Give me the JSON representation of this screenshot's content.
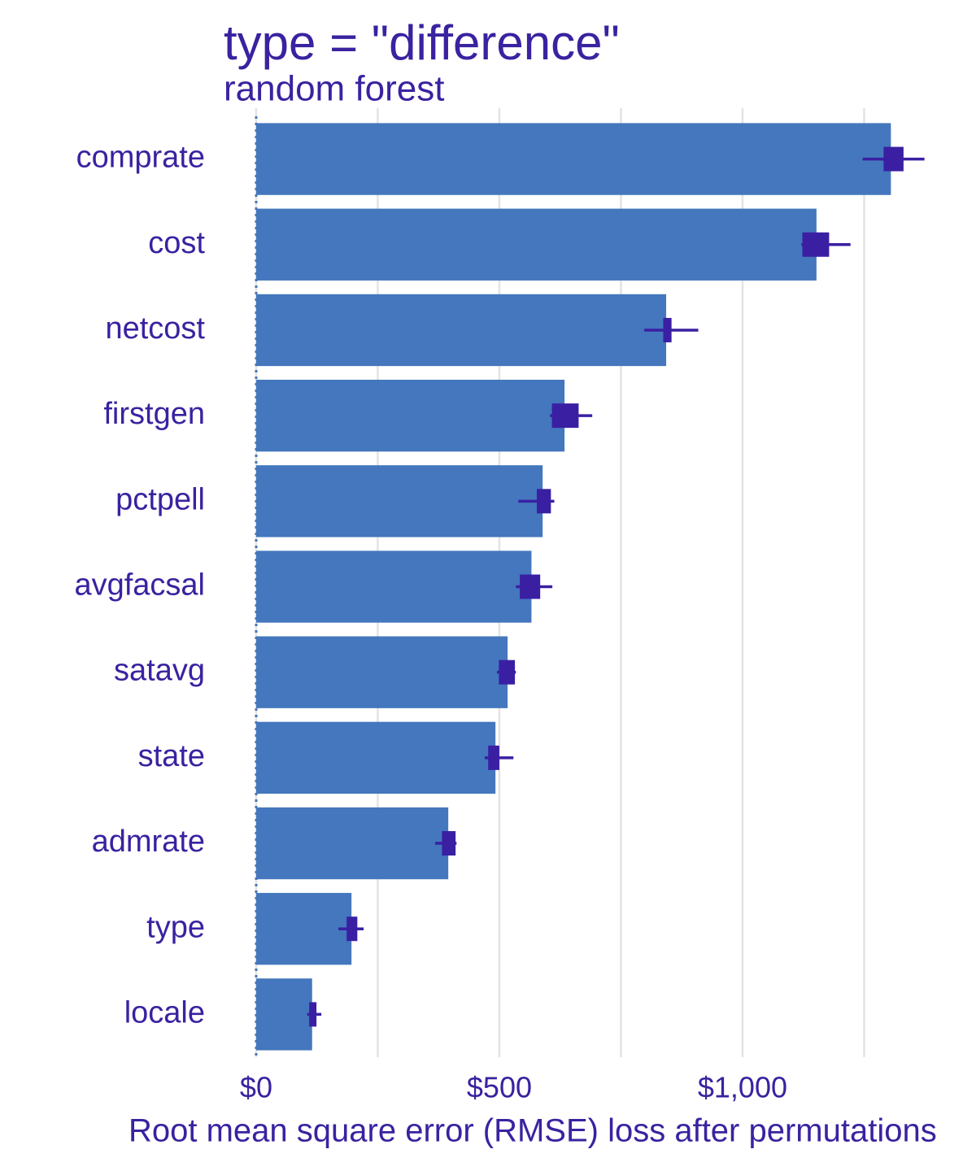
{
  "chart_data": {
    "type": "bar",
    "orientation": "horizontal",
    "title": "type = \"difference\"",
    "subtitle": "random forest",
    "x_label": "Root mean square error (RMSE) loss after permutations",
    "categories": [
      "comprate",
      "cost",
      "netcost",
      "firstgen",
      "pctpell",
      "avgfacsal",
      "satavg",
      "state",
      "admrate",
      "type",
      "locale"
    ],
    "values": [
      1305,
      1152,
      843,
      634,
      589,
      566,
      517,
      492,
      395,
      196,
      115
    ],
    "whisker_low": [
      1247,
      1121,
      798,
      604,
      539,
      534,
      495,
      470,
      368,
      169,
      105
    ],
    "q1": [
      1290,
      1123,
      837,
      608,
      577,
      542,
      499,
      477,
      382,
      186,
      109
    ],
    "q3": [
      1331,
      1178,
      854,
      663,
      606,
      584,
      532,
      500,
      410,
      208,
      124
    ],
    "whisker_high": [
      1374,
      1222,
      909,
      691,
      613,
      609,
      534,
      529,
      412,
      221,
      134
    ],
    "color": "#4477bd",
    "box_color": "#3a1fa3",
    "xlim": [
      -25,
      1480
    ],
    "xticks": [
      {
        "value": 0,
        "label": "$0"
      },
      {
        "value": 500,
        "label": "$500"
      },
      {
        "value": 1000,
        "label": "$1,000"
      }
    ],
    "x_minor_ticks": [
      250,
      750,
      1250
    ],
    "grid": true
  }
}
